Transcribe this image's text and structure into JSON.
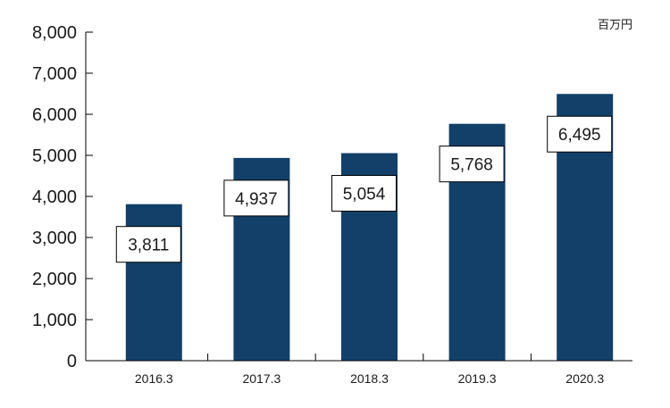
{
  "chart_data": {
    "type": "bar",
    "categories": [
      "2016.3",
      "2017.3",
      "2018.3",
      "2019.3",
      "2020.3"
    ],
    "values": [
      3811,
      4937,
      5054,
      5768,
      6495
    ],
    "value_labels": [
      "3,811",
      "4,937",
      "5,054",
      "5,768",
      "6,495"
    ],
    "unit": "百万円",
    "ylim": [
      0,
      8000
    ],
    "yticks": [
      0,
      1000,
      2000,
      3000,
      4000,
      5000,
      6000,
      7000,
      8000
    ],
    "ytick_labels": [
      "0",
      "1,000",
      "2,000",
      "3,000",
      "4,000",
      "5,000",
      "6,000",
      "7,000",
      "8,000"
    ],
    "bar_color": "#124069",
    "grid": false
  }
}
